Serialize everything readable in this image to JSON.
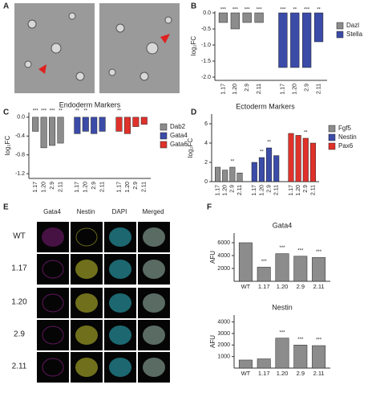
{
  "panel_labels": [
    "A",
    "B",
    "C",
    "D",
    "E",
    "F"
  ],
  "figure_E": {
    "columns": [
      "Gata4",
      "Nestin",
      "DAPI",
      "Merged"
    ],
    "rows": [
      "WT",
      "1.17",
      "1.20",
      "2.9",
      "2.11"
    ]
  },
  "chart_data": [
    {
      "type": "bar",
      "ylabel": "log₂FC",
      "ylim": [
        -2.1,
        0.05
      ],
      "yticks": [
        {
          "value": 0,
          "label": "0.0"
        },
        -0.5,
        {
          "value": -1,
          "label": "-1.0"
        },
        -1.5,
        {
          "value": -2,
          "label": "-2.0"
        }
      ],
      "categories": [
        "1.17",
        "1.20",
        "2.9",
        "2.11"
      ],
      "legend": "right",
      "series": [
        {
          "name": "Dazl",
          "color": "#8c8c8c",
          "values": [
            -0.3,
            -0.5,
            -0.3,
            -0.3
          ],
          "significance": [
            "***",
            "***",
            "***",
            "***"
          ]
        },
        {
          "name": "Stella",
          "color": "#3b4ba8",
          "values": [
            -1.7,
            -1.7,
            -1.7,
            -0.9
          ],
          "significance": [
            "***",
            "**",
            "***",
            "**"
          ]
        }
      ]
    },
    {
      "type": "bar",
      "title": "Endoderm Markers",
      "ylabel": "log₂FC",
      "ylim": [
        -1.3,
        0.1
      ],
      "yticks": [
        {
          "value": 0,
          "label": "0.0"
        },
        -0.4,
        -0.8,
        -1.2
      ],
      "categories": [
        "1.17",
        "1.20",
        "2.9",
        "2.11"
      ],
      "legend": "right",
      "series": [
        {
          "name": "Dab2",
          "color": "#8c8c8c",
          "values": [
            -0.3,
            -0.65,
            -0.6,
            -0.55
          ],
          "significance": [
            "***",
            "***",
            "***",
            "**"
          ]
        },
        {
          "name": "Gata4",
          "color": "#3b4ba8",
          "values": [
            -0.35,
            -0.3,
            -0.35,
            -0.3
          ],
          "significance": [
            "**",
            "**",
            null,
            null
          ]
        },
        {
          "name": "Gata6",
          "color": "#e0312b",
          "values": [
            -0.3,
            -0.35,
            -0.2,
            -0.15
          ],
          "significance": [
            "**",
            null,
            null,
            null
          ]
        }
      ]
    },
    {
      "type": "bar",
      "title": "Ectoderm Markers",
      "ylabel": "log₂FC",
      "ylim": [
        0,
        7
      ],
      "yticks": [
        0,
        2,
        4,
        6
      ],
      "categories": [
        "1.17",
        "1.20",
        "2.9",
        "2.11"
      ],
      "legend": "right",
      "series": [
        {
          "name": "Fgf5",
          "color": "#8c8c8c",
          "values": [
            1.5,
            1.2,
            1.5,
            0.9
          ],
          "significance": [
            null,
            null,
            "**",
            null
          ]
        },
        {
          "name": "Nestin",
          "color": "#3b4ba8",
          "values": [
            2,
            2.5,
            3.5,
            2.7
          ],
          "significance": [
            null,
            "**",
            "**",
            null
          ]
        },
        {
          "name": "Pax6",
          "color": "#e0312b",
          "values": [
            5,
            4.8,
            4.5,
            4
          ],
          "significance": [
            null,
            null,
            "**",
            null
          ]
        }
      ]
    },
    {
      "type": "bar",
      "title": "Gata4",
      "ylabel": "AFU",
      "ylim": [
        0,
        7500
      ],
      "yticks": [
        2000,
        4000,
        6000
      ],
      "categories": [
        "WT",
        "1.17",
        "1.20",
        "2.9",
        "2.11"
      ],
      "color": "#8c8c8c",
      "values": [
        6000,
        2200,
        4300,
        3900,
        3700
      ],
      "significance": [
        null,
        "***",
        "***",
        "***",
        "***"
      ]
    },
    {
      "type": "bar",
      "title": "Nestin",
      "ylabel": "AFU",
      "ylim": [
        0,
        4600
      ],
      "yticks": [
        1000,
        2000,
        3000,
        4000
      ],
      "categories": [
        "WT",
        "1.17",
        "1.20",
        "2.9",
        "2.11"
      ],
      "color": "#8c8c8c",
      "values": [
        700,
        800,
        2600,
        2000,
        1950
      ],
      "significance": [
        null,
        null,
        "***",
        "***",
        "***"
      ]
    }
  ]
}
